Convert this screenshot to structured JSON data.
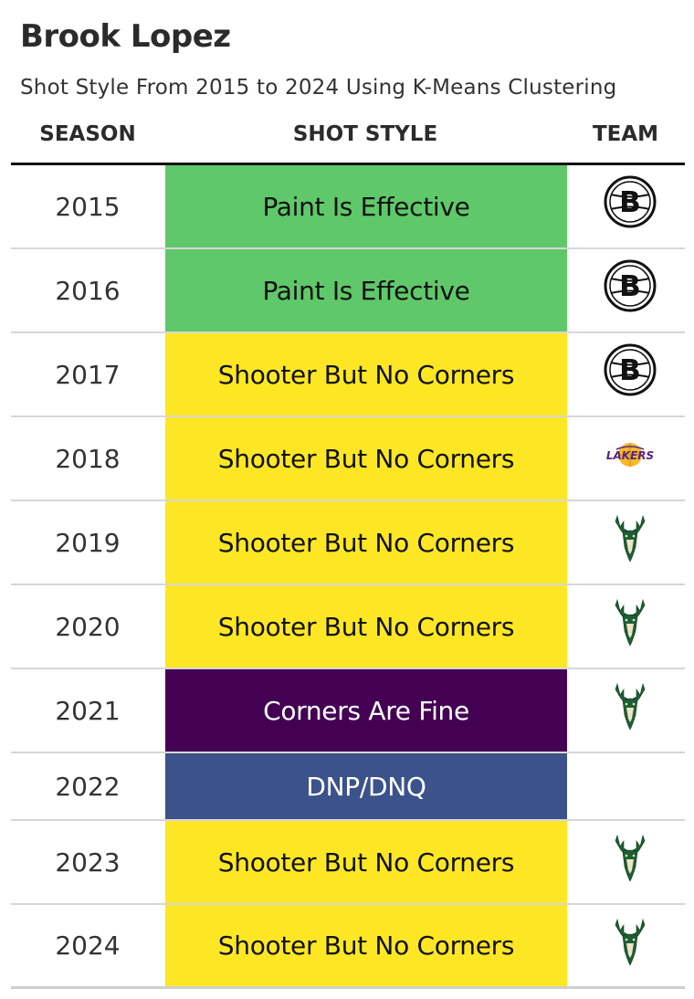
{
  "title": "Brook Lopez",
  "subtitle": "Shot Style From 2015 to 2024 Using K-Means Clustering",
  "headers": {
    "season": "SEASON",
    "shot_style": "SHOT STYLE",
    "team": "TEAM"
  },
  "colors": {
    "Paint Is Effective": "#5fc86a",
    "Shooter But No Corners": "#fde725",
    "Corners Are Fine": "#440154",
    "DNP/DNQ": "#3b528b"
  },
  "text_colors": {
    "Paint Is Effective": "#111111",
    "Shooter But No Corners": "#111111",
    "Corners Are Fine": "#ffffff",
    "DNP/DNQ": "#ffffff"
  },
  "team_logos": {
    "BKN": "nets-logo-icon",
    "LAL": "lakers-logo-icon",
    "MIL": "bucks-logo-icon"
  },
  "logo_lettering": {
    "LAL": "LAKERS",
    "BKN": "B"
  },
  "chart_data": {
    "type": "table",
    "title": "Brook Lopez",
    "subtitle": "Shot Style From 2015 to 2024 Using K-Means Clustering",
    "columns": [
      "SEASON",
      "SHOT STYLE",
      "TEAM"
    ],
    "rows": [
      {
        "season": "2015",
        "shot_style": "Paint Is Effective",
        "team": "BKN"
      },
      {
        "season": "2016",
        "shot_style": "Paint Is Effective",
        "team": "BKN"
      },
      {
        "season": "2017",
        "shot_style": "Shooter But No Corners",
        "team": "BKN"
      },
      {
        "season": "2018",
        "shot_style": "Shooter But No Corners",
        "team": "LAL"
      },
      {
        "season": "2019",
        "shot_style": "Shooter But No Corners",
        "team": "MIL"
      },
      {
        "season": "2020",
        "shot_style": "Shooter But No Corners",
        "team": "MIL"
      },
      {
        "season": "2021",
        "shot_style": "Corners Are Fine",
        "team": "MIL"
      },
      {
        "season": "2022",
        "shot_style": "DNP/DNQ",
        "team": ""
      },
      {
        "season": "2023",
        "shot_style": "Shooter But No Corners",
        "team": "MIL"
      },
      {
        "season": "2024",
        "shot_style": "Shooter But No Corners",
        "team": "MIL"
      }
    ]
  }
}
